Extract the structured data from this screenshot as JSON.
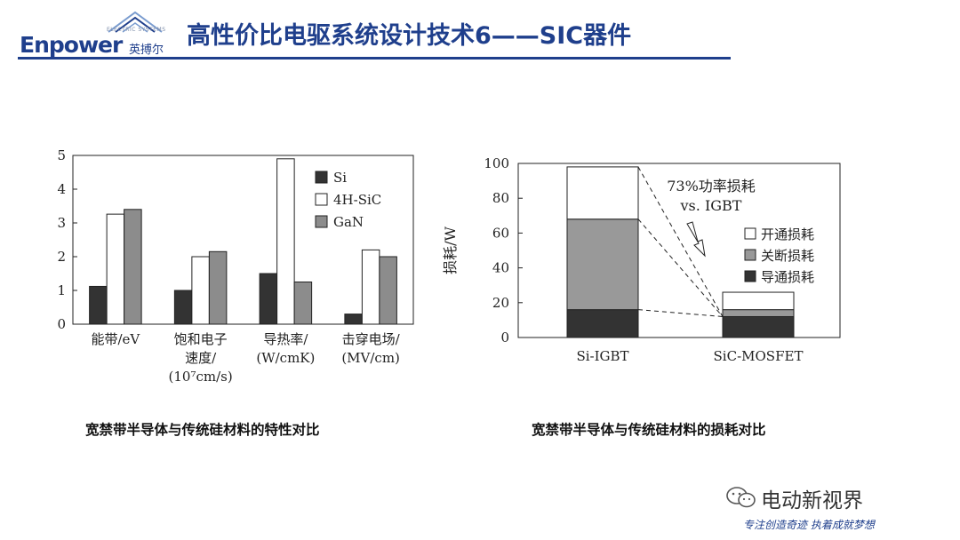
{
  "header": {
    "logo_text": "Enpower",
    "logo_cn": "英搏尔",
    "logo_sub": "ELECTRIC SYSTEMS",
    "title": "高性价比电驱系统设计技术6——SIC器件"
  },
  "captions": {
    "left": "宽禁带半导体与传统硅材料的特性对比",
    "right": "宽禁带半导体与传统硅材料的损耗对比"
  },
  "watermark": {
    "text": "电动新视界",
    "slogan": "专注创造奇迹 执着成就梦想"
  },
  "colors": {
    "brand": "#1f3f8c",
    "si": "#333333",
    "sic": "#ffffff",
    "gan": "#8c8c8c",
    "turn_on": "#ffffff",
    "turn_off": "#999999",
    "conduction": "#333333"
  },
  "chart_data": [
    {
      "type": "bar",
      "categories": [
        {
          "lines": [
            "能带/eV"
          ]
        },
        {
          "lines": [
            "饱和电子",
            "速度/",
            "(10⁷cm/s)"
          ]
        },
        {
          "lines": [
            "导热率/",
            "(W/cmK)"
          ]
        },
        {
          "lines": [
            "击穿电场/",
            "(MV/cm)"
          ]
        }
      ],
      "series": [
        {
          "name": "Si",
          "color": "#333333",
          "values": [
            1.12,
            1.0,
            1.5,
            0.3
          ]
        },
        {
          "name": "4H-SiC",
          "color": "#ffffff",
          "values": [
            3.26,
            2.0,
            4.9,
            2.2
          ]
        },
        {
          "name": "GaN",
          "color": "#8c8c8c",
          "values": [
            3.4,
            2.15,
            1.25,
            2.0
          ]
        }
      ],
      "ylim": [
        0,
        5
      ],
      "yticks": [
        0,
        1,
        2,
        3,
        4,
        5
      ],
      "legend": "top-right",
      "grid": false
    },
    {
      "type": "bar",
      "stacked": true,
      "categories": [
        "Si-IGBT",
        "SiC-MOSFET"
      ],
      "series": [
        {
          "name": "导通损耗",
          "color": "#333333",
          "values": [
            16,
            12
          ]
        },
        {
          "name": "关断损耗",
          "color": "#999999",
          "values": [
            52,
            4
          ]
        },
        {
          "name": "开通损耗",
          "color": "#ffffff",
          "values": [
            30,
            10
          ]
        }
      ],
      "ylabel": "损耗/W",
      "ylim": [
        0,
        100
      ],
      "yticks": [
        0,
        20,
        40,
        60,
        80,
        100
      ],
      "annotation": [
        "73%功率损耗",
        "vs. IGBT"
      ],
      "legend": "right",
      "grid": false
    }
  ]
}
